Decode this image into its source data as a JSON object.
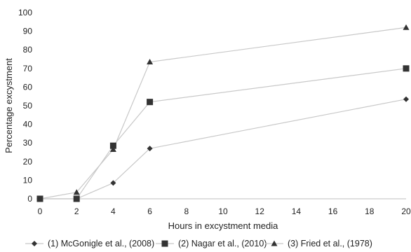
{
  "chart_data": {
    "type": "line",
    "title": "",
    "xlabel": "Hours in excystment media",
    "ylabel": "Percentage excystment",
    "xlim": [
      0,
      20
    ],
    "ylim": [
      0,
      100
    ],
    "x_ticks": [
      "0",
      "2",
      "4",
      "6",
      "8",
      "10",
      "12",
      "14",
      "16",
      "18",
      "20"
    ],
    "y_ticks": [
      "0",
      "10",
      "20",
      "30",
      "40",
      "50",
      "60",
      "70",
      "80",
      "90",
      "100"
    ],
    "x": [
      0,
      2,
      4,
      6,
      20
    ],
    "grid": false,
    "legend_position": "bottom",
    "series": [
      {
        "name": "(1) McGonigle et al., (2008)",
        "marker": "diamond",
        "values": [
          0,
          0,
          8.5,
          27,
          53.5
        ],
        "color": "#333333"
      },
      {
        "name": "(2) Nagar et al., (2010)",
        "marker": "square",
        "values": [
          0,
          0,
          28.5,
          52,
          70
        ],
        "color": "#333333"
      },
      {
        "name": "(3) Fried et al., (1978)",
        "marker": "triangle",
        "values": [
          0,
          3.5,
          26.5,
          73.5,
          92
        ],
        "color": "#333333"
      }
    ],
    "line_color": "#c8c8c8",
    "axis_color": "#bfbfbf"
  }
}
